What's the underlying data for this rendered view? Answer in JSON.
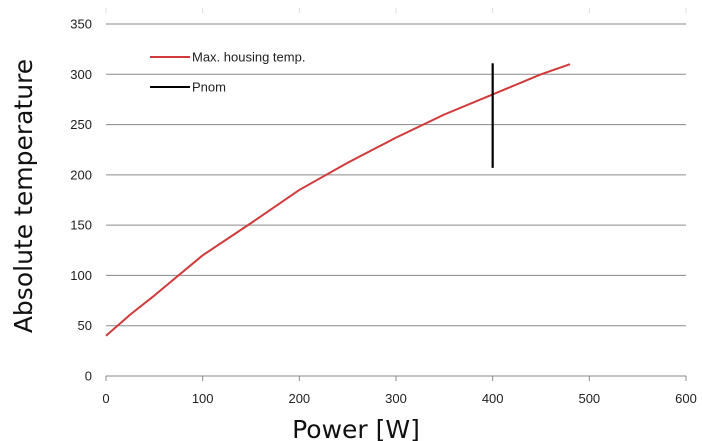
{
  "chart_data": {
    "type": "line",
    "xlabel": "Power [W]",
    "ylabel": "Absolute temperature",
    "xlim": [
      0,
      600
    ],
    "ylim": [
      0,
      350
    ],
    "xticks": [
      "0",
      "100",
      "200",
      "300",
      "400",
      "500",
      "600"
    ],
    "yticks": [
      "0",
      "50",
      "100",
      "150",
      "200",
      "250",
      "300",
      "350"
    ],
    "grid": "horizontal",
    "legend_position": "top-left",
    "series": [
      {
        "name": "Max. housing temp.",
        "color": "#d03a3a",
        "x": [
          0,
          25,
          50,
          100,
          150,
          200,
          250,
          300,
          350,
          400,
          450,
          480
        ],
        "y": [
          40,
          61,
          80,
          120,
          152,
          185,
          212,
          237,
          260,
          280,
          300,
          310
        ]
      },
      {
        "name": "Pnom",
        "color": "#000000",
        "x": [
          400,
          400
        ],
        "y": [
          207,
          311
        ]
      }
    ]
  }
}
